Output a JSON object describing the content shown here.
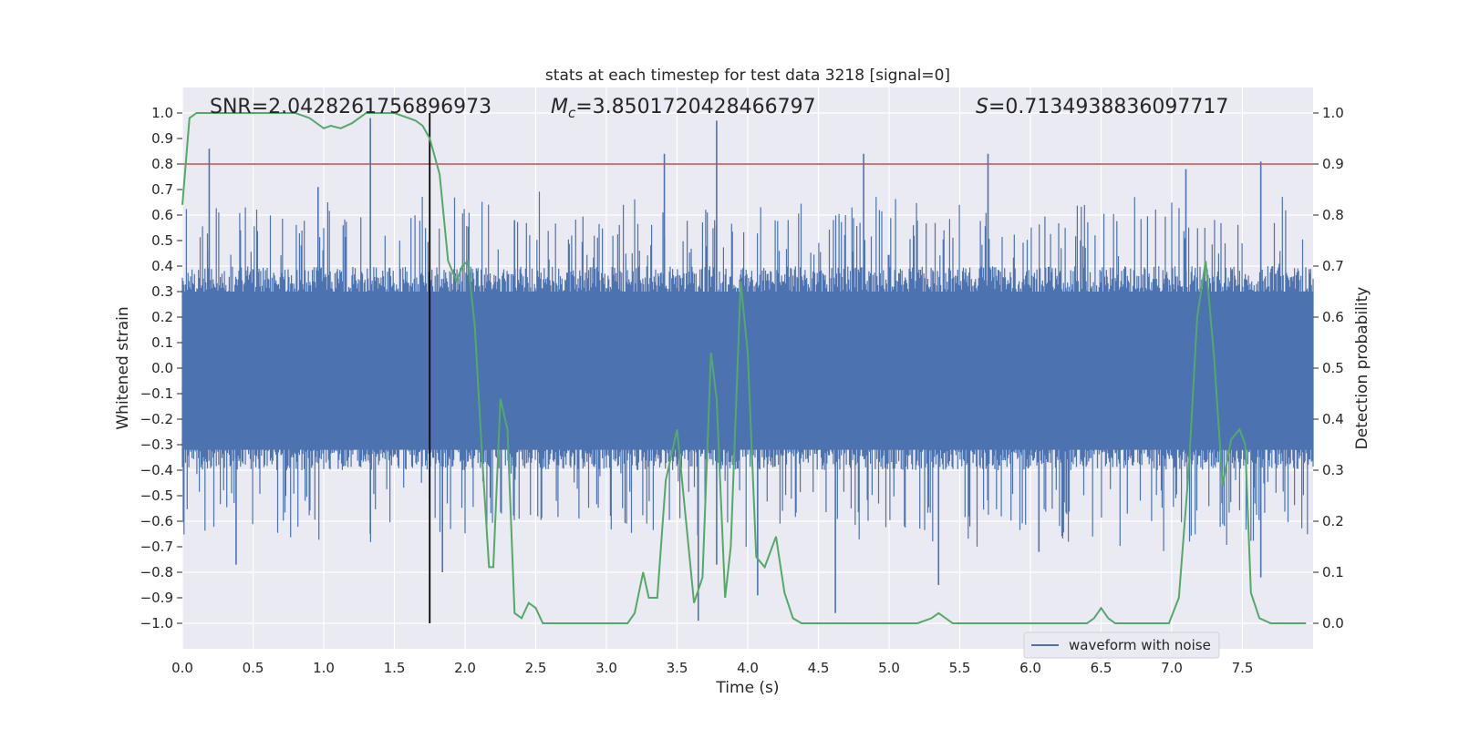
{
  "chart_data": {
    "type": "line",
    "title": "stats at each timestep for test data 3218 [signal=0]",
    "xlabel": "Time (s)",
    "ylabel_left": "Whitened strain",
    "ylabel_right": "Detection probability",
    "xlim": [
      0.0,
      8.0
    ],
    "ylim_left": [
      -1.1,
      1.1
    ],
    "ylim_right": [
      -0.05,
      1.05
    ],
    "x_ticks": [
      "0.0",
      "0.5",
      "1.0",
      "1.5",
      "2.0",
      "2.5",
      "3.0",
      "3.5",
      "4.0",
      "4.5",
      "5.0",
      "5.5",
      "6.0",
      "6.5",
      "7.0",
      "7.5"
    ],
    "x_tick_values": [
      0.0,
      0.5,
      1.0,
      1.5,
      2.0,
      2.5,
      3.0,
      3.5,
      4.0,
      4.5,
      5.0,
      5.5,
      6.0,
      6.5,
      7.0,
      7.5
    ],
    "y_left_ticks": [
      "1.0",
      "0.9",
      "0.8",
      "0.7",
      "0.6",
      "0.5",
      "0.4",
      "0.3",
      "0.2",
      "0.1",
      "0.0",
      "−0.1",
      "−0.2",
      "−0.3",
      "−0.4",
      "−0.5",
      "−0.6",
      "−0.7",
      "−0.8",
      "−0.9",
      "−1.0"
    ],
    "y_left_tick_values": [
      1.0,
      0.9,
      0.8,
      0.7,
      0.6,
      0.5,
      0.4,
      0.3,
      0.2,
      0.1,
      0.0,
      -0.1,
      -0.2,
      -0.3,
      -0.4,
      -0.5,
      -0.6,
      -0.7,
      -0.8,
      -0.9,
      -1.0
    ],
    "y_right_ticks": [
      "1.0",
      "0.9",
      "0.8",
      "0.7",
      "0.6",
      "0.5",
      "0.4",
      "0.3",
      "0.2",
      "0.1",
      "0.0"
    ],
    "y_right_tick_values": [
      1.0,
      0.9,
      0.8,
      0.7,
      0.6,
      0.5,
      0.4,
      0.3,
      0.2,
      0.1,
      0.0
    ],
    "annotations": {
      "snr": "SNR=2.0428261756896973",
      "mc_symbol": "M",
      "mc_sub": "c",
      "mc_value": "=3.8501720428466797",
      "s_symbol": "S",
      "s_value": "=0.7134938836097717"
    },
    "threshold": {
      "value": 0.9,
      "axis": "right",
      "color": "#c44e52"
    },
    "vline": {
      "x": 1.75,
      "color": "#000000"
    },
    "legend": {
      "label": "waveform with noise",
      "location": "lower-right"
    },
    "series": [
      {
        "name": "waveform with noise",
        "axis": "left",
        "color": "#4c72b0",
        "envelope_note": "dense noisy strain, roughly within ±0.4 with spikes",
        "spikes": [
          {
            "x": 0.19,
            "y": 0.86
          },
          {
            "x": 0.38,
            "y": -0.77
          },
          {
            "x": 0.96,
            "y": 0.71
          },
          {
            "x": 1.33,
            "y": 0.98
          },
          {
            "x": 1.33,
            "y": -0.65
          },
          {
            "x": 1.84,
            "y": -0.8
          },
          {
            "x": 2.35,
            "y": 0.58
          },
          {
            "x": 3.41,
            "y": 0.84
          },
          {
            "x": 3.65,
            "y": -0.99
          },
          {
            "x": 3.78,
            "y": 0.97
          },
          {
            "x": 3.78,
            "y": -0.77
          },
          {
            "x": 4.07,
            "y": -0.89
          },
          {
            "x": 4.62,
            "y": -0.96
          },
          {
            "x": 4.82,
            "y": 0.84
          },
          {
            "x": 5.35,
            "y": -0.85
          },
          {
            "x": 5.7,
            "y": 0.84
          },
          {
            "x": 6.06,
            "y": -0.72
          },
          {
            "x": 7.1,
            "y": 0.78
          },
          {
            "x": 7.63,
            "y": 0.81
          },
          {
            "x": 7.63,
            "y": -0.82
          }
        ]
      },
      {
        "name": "detection probability",
        "axis": "right",
        "color": "#55a868",
        "x": [
          0.0,
          0.05,
          0.1,
          0.2,
          0.3,
          0.4,
          0.5,
          0.6,
          0.7,
          0.8,
          0.9,
          1.0,
          1.05,
          1.12,
          1.2,
          1.3,
          1.4,
          1.5,
          1.6,
          1.65,
          1.7,
          1.75,
          1.82,
          1.88,
          1.94,
          1.98,
          2.02,
          2.07,
          2.12,
          2.17,
          2.2,
          2.25,
          2.3,
          2.35,
          2.4,
          2.45,
          2.5,
          2.55,
          2.65,
          2.75,
          2.85,
          2.95,
          3.05,
          3.15,
          3.2,
          3.26,
          3.3,
          3.36,
          3.42,
          3.5,
          3.56,
          3.62,
          3.68,
          3.74,
          3.78,
          3.84,
          3.88,
          3.95,
          4.0,
          4.06,
          4.12,
          4.2,
          4.26,
          4.32,
          4.38,
          4.44,
          4.5,
          4.6,
          4.7,
          4.8,
          4.9,
          5.0,
          5.1,
          5.2,
          5.3,
          5.35,
          5.45,
          5.5,
          5.6,
          5.8,
          6.0,
          6.1,
          6.2,
          6.3,
          6.4,
          6.45,
          6.5,
          6.55,
          6.6,
          6.7,
          6.8,
          6.9,
          6.98,
          7.05,
          7.12,
          7.18,
          7.24,
          7.3,
          7.36,
          7.42,
          7.48,
          7.52,
          7.56,
          7.62,
          7.7,
          7.8,
          7.9,
          7.95
        ],
        "y": [
          0.82,
          0.99,
          1.0,
          1.0,
          1.0,
          1.0,
          1.0,
          1.0,
          1.0,
          1.0,
          0.99,
          0.97,
          0.975,
          0.97,
          0.98,
          1.0,
          1.0,
          1.0,
          0.99,
          0.985,
          0.975,
          0.95,
          0.88,
          0.71,
          0.67,
          0.7,
          0.71,
          0.58,
          0.33,
          0.11,
          0.11,
          0.44,
          0.38,
          0.02,
          0.01,
          0.04,
          0.03,
          0.0,
          0.0,
          0.0,
          0.0,
          0.0,
          0.0,
          0.0,
          0.02,
          0.1,
          0.05,
          0.05,
          0.28,
          0.38,
          0.21,
          0.04,
          0.09,
          0.53,
          0.44,
          0.05,
          0.15,
          0.67,
          0.53,
          0.13,
          0.11,
          0.17,
          0.06,
          0.01,
          0.0,
          0.0,
          0.0,
          0.0,
          0.0,
          0.0,
          0.0,
          0.0,
          0.0,
          0.0,
          0.01,
          0.02,
          0.0,
          0.0,
          0.0,
          0.0,
          0.0,
          0.0,
          0.0,
          0.0,
          0.0,
          0.01,
          0.03,
          0.01,
          0.0,
          0.0,
          0.0,
          0.0,
          0.0,
          0.05,
          0.3,
          0.6,
          0.71,
          0.52,
          0.27,
          0.36,
          0.38,
          0.35,
          0.06,
          0.01,
          0.0,
          0.0,
          0.0,
          0.0
        ]
      }
    ]
  }
}
